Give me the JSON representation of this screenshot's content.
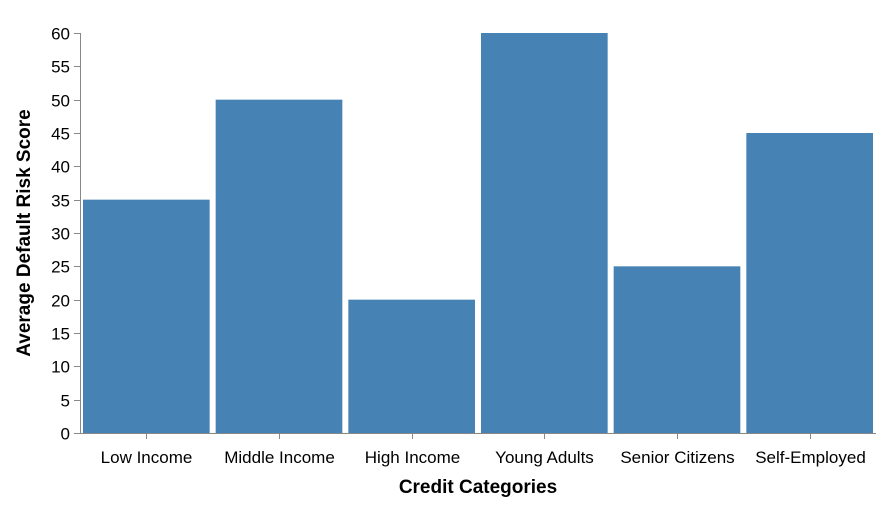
{
  "chart_data": {
    "type": "bar",
    "categories": [
      "Low Income",
      "Middle Income",
      "High Income",
      "Young Adults",
      "Senior Citizens",
      "Self-Employed"
    ],
    "values": [
      35,
      50,
      20,
      60,
      25,
      45
    ],
    "xlabel": "Credit Categories",
    "ylabel": "Average Default Risk Score",
    "ylim": [
      0,
      60
    ],
    "yticks": [
      0,
      5,
      10,
      15,
      20,
      25,
      30,
      35,
      40,
      45,
      50,
      55,
      60
    ],
    "grid": false,
    "bar_color": "#4682b4"
  }
}
